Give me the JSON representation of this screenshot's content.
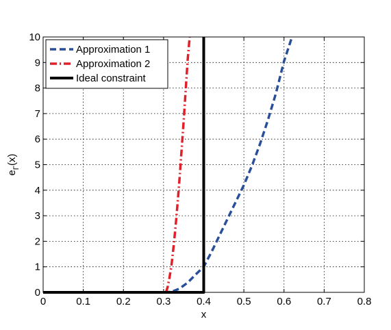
{
  "chart_data": {
    "type": "line",
    "xlabel": "x",
    "ylabel": "e",
    "ylabel_sub": "Γ",
    "ylabel_suffix": "(x)",
    "xlim": [
      0,
      0.8
    ],
    "ylim": [
      0,
      10
    ],
    "xticks": [
      0,
      0.1,
      0.2,
      0.3,
      0.4,
      0.5,
      0.6,
      0.7,
      0.8
    ],
    "xtick_labels": [
      "0",
      "0.1",
      "0.2",
      "0.3",
      "0.4",
      "0.5",
      "0.6",
      "0.7",
      "0.8"
    ],
    "yticks": [
      0,
      1,
      2,
      3,
      4,
      5,
      6,
      7,
      8,
      9,
      10
    ],
    "ytick_labels": [
      "0",
      "1",
      "2",
      "3",
      "4",
      "5",
      "6",
      "7",
      "8",
      "9",
      "10"
    ],
    "grid": true,
    "legend_position": "top-left",
    "series": [
      {
        "name": "Approximation 1",
        "color": "#2a4f9a",
        "style": "dashed",
        "x": [
          0.3,
          0.32,
          0.34,
          0.36,
          0.38,
          0.4,
          0.42,
          0.44,
          0.46,
          0.48,
          0.5,
          0.52,
          0.54,
          0.56,
          0.58,
          0.6,
          0.62
        ],
        "y": [
          0.0,
          0.02,
          0.15,
          0.38,
          0.7,
          1.0,
          1.6,
          2.25,
          2.9,
          3.55,
          4.2,
          4.95,
          5.8,
          6.75,
          7.8,
          9.05,
          10.0
        ]
      },
      {
        "name": "Approximation 2",
        "color": "#e0202a",
        "style": "dashdot",
        "x": [
          0.306,
          0.31,
          0.315,
          0.32,
          0.325,
          0.33,
          0.335,
          0.34,
          0.345,
          0.35,
          0.355,
          0.36,
          0.365
        ],
        "y": [
          0.0,
          0.2,
          0.6,
          1.1,
          1.8,
          2.6,
          3.5,
          4.5,
          5.6,
          6.7,
          7.9,
          9.1,
          10.0
        ]
      },
      {
        "name": "Ideal constraint",
        "color": "#000000",
        "style": "solid",
        "x": [
          0,
          0.4,
          0.4
        ],
        "y": [
          0,
          0,
          10
        ]
      }
    ]
  }
}
